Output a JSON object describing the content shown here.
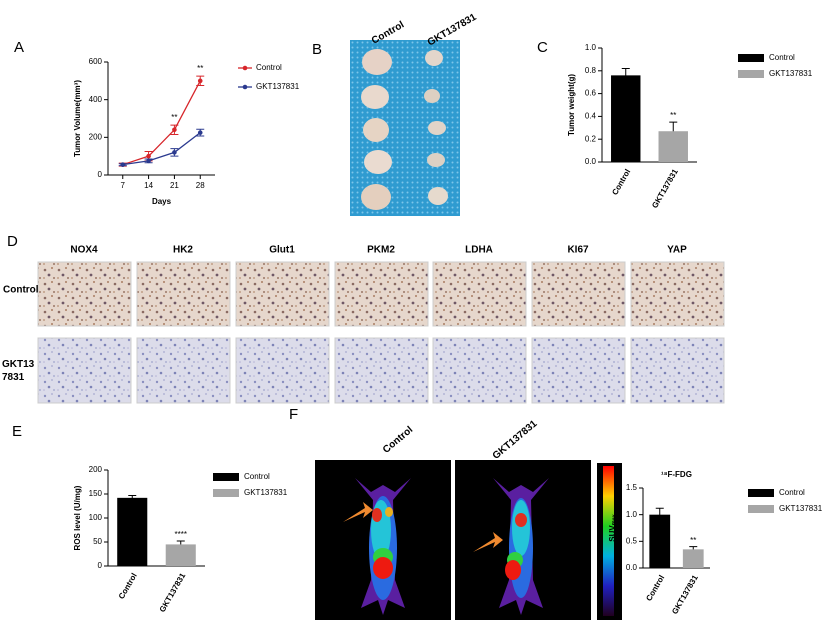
{
  "chart_data": [
    {
      "type": "line",
      "ylabel": "Tumor Volume(mm³)",
      "xlabel": "Days",
      "x": [
        7,
        14,
        21,
        28
      ],
      "xlim": [
        3,
        32
      ],
      "xticks": [
        7,
        14,
        21,
        28
      ],
      "ylim": [
        0,
        600
      ],
      "yticks": [
        0,
        200,
        400,
        600
      ],
      "legend": "right",
      "series": [
        {
          "name": "Control",
          "color": "#d7262b",
          "values": [
            55,
            100,
            240,
            500
          ],
          "errors": [
            8,
            25,
            25,
            25
          ],
          "significance": [
            null,
            null,
            "**",
            "**"
          ]
        },
        {
          "name": "GKT137831",
          "color": "#2b3a8f",
          "values": [
            55,
            75,
            120,
            225
          ],
          "errors": [
            5,
            10,
            20,
            18
          ]
        }
      ]
    },
    {
      "type": "bar",
      "ylabel": "Tumor weight(g)",
      "categories": [
        "Control",
        "GKT137831"
      ],
      "values": [
        0.76,
        0.27
      ],
      "errors": [
        0.06,
        0.08
      ],
      "significance": [
        null,
        "**"
      ],
      "colors": [
        "#000000",
        "#a6a6a6"
      ],
      "ylim": [
        0,
        1
      ],
      "yticks": [
        {
          "value": 0,
          "label": "0.0"
        },
        0.2,
        0.4,
        0.6,
        0.8,
        {
          "value": 1,
          "label": "1.0"
        }
      ],
      "legend": "right"
    },
    {
      "type": "bar",
      "ylabel": "ROS level (U/mg)",
      "categories": [
        "Control",
        "GKT137831"
      ],
      "values": [
        142,
        45
      ],
      "errors": [
        5,
        7
      ],
      "significance": [
        null,
        "****"
      ],
      "colors": [
        "#000000",
        "#a6a6a6"
      ],
      "ylim": [
        0,
        200
      ],
      "yticks": [
        0,
        50,
        100,
        150,
        200
      ],
      "legend": "right"
    },
    {
      "type": "bar",
      "title": "¹⁸F-FDG",
      "ylabel": "SUVₘₐₓ",
      "categories": [
        "Control",
        "GKT137831"
      ],
      "values": [
        1.0,
        0.35
      ],
      "errors": [
        0.12,
        0.05
      ],
      "significance": [
        null,
        "**"
      ],
      "colors": [
        "#000000",
        "#a6a6a6"
      ],
      "ylim": [
        0,
        1.5
      ],
      "yticks": [
        {
          "value": 0,
          "label": "0.0"
        },
        0.5,
        {
          "value": 1,
          "label": "1.0"
        },
        1.5
      ],
      "legend": "right"
    }
  ],
  "panels": {
    "labels": [
      "A",
      "B",
      "C",
      "D",
      "E",
      "F"
    ]
  },
  "photo_b": {
    "columns": [
      "Control",
      "GKT137831"
    ]
  },
  "panel_d": {
    "stains": [
      "NOX4",
      "HK2",
      "Glut1",
      "PKM2",
      "LDHA",
      "KI67",
      "YAP"
    ],
    "rows": [
      "Control",
      "GKT137831"
    ]
  },
  "panel_f": {
    "columns": [
      "Control",
      "GKT137831"
    ]
  }
}
